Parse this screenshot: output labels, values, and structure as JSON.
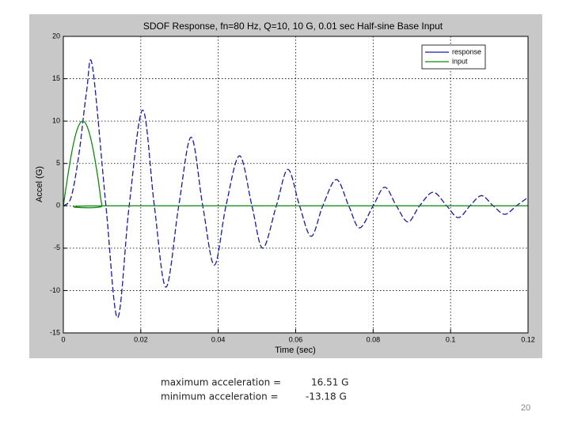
{
  "chart_data": {
    "type": "line",
    "title": "SDOF Response, fn=80 Hz, Q=10,    10 G, 0.01 sec Half-sine Base Input",
    "xlabel": "Time (sec)",
    "ylabel": "Accel (G)",
    "xlim": [
      0,
      0.12
    ],
    "xticks": [
      0,
      0.02,
      0.04,
      0.06,
      0.08,
      0.1,
      0.12
    ],
    "ylim": [
      -15,
      20
    ],
    "yticks": [
      -15,
      -10,
      -5,
      0,
      5,
      10,
      15,
      20
    ],
    "grid": true,
    "legend": "upper right",
    "series": [
      {
        "name": "response",
        "color": "#1a1aa0",
        "x": [
          0,
          0.002,
          0.004,
          0.006,
          0.0075,
          0.011,
          0.014,
          0.017,
          0.0205,
          0.0235,
          0.0265,
          0.0298,
          0.033,
          0.036,
          0.039,
          0.042,
          0.0455,
          0.0487,
          0.0515,
          0.055,
          0.058,
          0.061,
          0.064,
          0.067,
          0.0705,
          0.0737,
          0.0765,
          0.08,
          0.083,
          0.086,
          0.089,
          0.092,
          0.0955,
          0.099,
          0.102,
          0.105,
          0.108,
          0.111,
          0.114,
          0.117,
          0.12
        ],
        "values": [
          0,
          1,
          6,
          13.5,
          16.5,
          0,
          -13.2,
          0,
          11.3,
          0,
          -9.6,
          0,
          8.1,
          0,
          -7,
          0,
          5.9,
          0,
          -5,
          0,
          4.3,
          0,
          -3.6,
          0,
          3.1,
          0,
          -2.6,
          0,
          2.2,
          0,
          -1.9,
          0,
          1.6,
          0,
          -1.4,
          0,
          1.2,
          0,
          -1,
          0,
          1
        ]
      },
      {
        "name": "input",
        "color": "#118811",
        "x": [
          0,
          0.001,
          0.002,
          0.003,
          0.004,
          0.005,
          0.006,
          0.007,
          0.008,
          0.009,
          0.01,
          0.011,
          0.12
        ],
        "values": [
          0,
          3.09,
          5.88,
          8.09,
          9.51,
          10,
          9.51,
          8.09,
          5.88,
          3.09,
          0,
          0,
          0
        ]
      }
    ]
  },
  "summary": [
    {
      "label": "maximum acceleration =",
      "value": "16.51 G"
    },
    {
      "label": "minimum acceleration =",
      "value": "-13.18 G"
    }
  ],
  "page_number": "20"
}
